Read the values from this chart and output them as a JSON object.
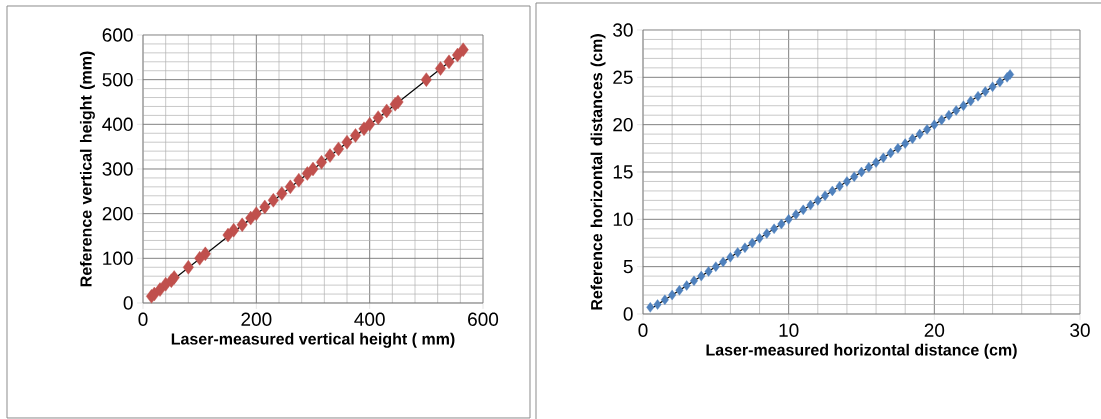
{
  "chart_data": [
    {
      "type": "scatter",
      "xlabel": "Laser-measured vertical height ( mm)",
      "ylabel": "Reference vertical height (mm)",
      "xlim": [
        0,
        600
      ],
      "ylim": [
        0,
        600
      ],
      "xticks": [
        0,
        200,
        400,
        600
      ],
      "yticks": [
        0,
        100,
        200,
        300,
        400,
        500,
        600
      ],
      "grid": true,
      "marker": "diamond",
      "series": [
        {
          "color": "#c0504d",
          "x": [
            15,
            20,
            30,
            40,
            50,
            55,
            80,
            100,
            110,
            150,
            160,
            175,
            190,
            200,
            215,
            230,
            245,
            260,
            275,
            290,
            300,
            315,
            330,
            345,
            360,
            375,
            390,
            400,
            415,
            430,
            445,
            450,
            500,
            525,
            540,
            555,
            565
          ],
          "values": [
            15,
            20,
            30,
            42,
            50,
            57,
            80,
            100,
            110,
            152,
            163,
            175,
            190,
            200,
            215,
            230,
            245,
            260,
            275,
            290,
            300,
            315,
            330,
            345,
            360,
            375,
            390,
            400,
            415,
            430,
            445,
            450,
            500,
            525,
            540,
            555,
            567
          ]
        },
        {
          "type": "line",
          "color": "#000000",
          "line_style": "solid",
          "marker": "none",
          "x": [
            15,
            565
          ],
          "values": [
            14,
            564
          ]
        }
      ]
    },
    {
      "type": "scatter",
      "xlabel": "Laser-measured  horizontal distance (cm)",
      "ylabel": "Reference horizontal distances (cm)",
      "xlim": [
        0,
        30
      ],
      "ylim": [
        0,
        30
      ],
      "xticks": [
        0,
        10,
        20,
        30
      ],
      "yticks": [
        0,
        5,
        10,
        15,
        20,
        25,
        30
      ],
      "grid": true,
      "marker": "diamond",
      "series": [
        {
          "color": "#4f81bd",
          "x": [
            0.5,
            1,
            1.5,
            2,
            2.5,
            3,
            3.5,
            4,
            4.5,
            5,
            5.5,
            6,
            6.5,
            7,
            7.5,
            8,
            8.5,
            9,
            9.5,
            10,
            10.5,
            11,
            11.5,
            12,
            12.5,
            13,
            13.5,
            14,
            14.5,
            15,
            15.5,
            16,
            16.5,
            17,
            17.5,
            18,
            18.5,
            19,
            19.5,
            20,
            20.5,
            21,
            21.5,
            22,
            22.5,
            23,
            23.5,
            24,
            24.5,
            25,
            25.2
          ],
          "values": [
            0.7,
            1,
            1.5,
            2,
            2.5,
            3,
            3.5,
            4,
            4.5,
            5,
            5.5,
            6,
            6.5,
            7,
            7.5,
            8,
            8.5,
            9,
            9.5,
            10,
            10.5,
            11,
            11.5,
            12,
            12.5,
            13,
            13.5,
            14,
            14.5,
            15,
            15.5,
            16,
            16.5,
            17,
            17.5,
            18,
            18.5,
            19,
            19.5,
            20,
            20.5,
            21,
            21.5,
            22,
            22.5,
            23,
            23.5,
            24,
            24.5,
            25,
            25.3
          ]
        },
        {
          "type": "line",
          "color": "#000000",
          "line_style": "solid",
          "marker": "none",
          "x": [
            0.5,
            25
          ],
          "values": [
            0.5,
            25
          ]
        }
      ]
    }
  ]
}
